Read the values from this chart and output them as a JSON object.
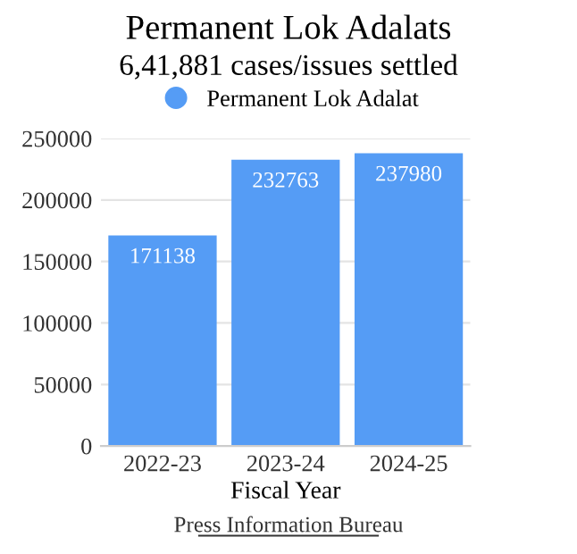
{
  "chart_data": {
    "type": "bar",
    "title": "Permanent Lok Adalats",
    "subtitle": "6,41,881 cases/issues settled",
    "xlabel": "Fiscal Year",
    "categories": [
      "2022-23",
      "2023-24",
      "2024-25"
    ],
    "series": [
      {
        "name": "Permanent Lok Adalat",
        "color": "#559cf5",
        "values": [
          171138,
          232763,
          237980
        ]
      }
    ],
    "ylim": [
      0,
      250000
    ],
    "yticks": [
      0,
      50000,
      100000,
      150000,
      200000,
      250000
    ],
    "grid": "y",
    "legend": "top",
    "data_labels": true,
    "annotations": [
      "Press Information Bureau"
    ]
  }
}
